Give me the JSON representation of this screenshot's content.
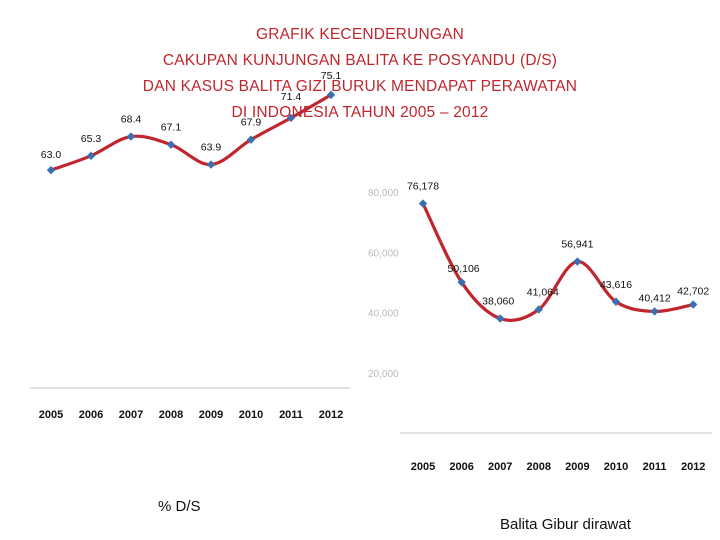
{
  "title": {
    "lines": [
      "GRAFIK KECENDERUNGAN",
      "CAKUPAN KUNJUNGAN BALITA KE POSYANDU (D/S)",
      "DAN KASUS BALITA GIZI BURUK MENDAPAT PERAWATAN",
      "DI INDONESIA TAHUN 2005 – 2012"
    ]
  },
  "colors": {
    "title": "#c0272d",
    "line": "#c0272d",
    "marker": "#3a6fb0",
    "axis": "#cfcfcf"
  },
  "chart_data": [
    {
      "type": "line",
      "caption": "% D/S",
      "categories": [
        "2005",
        "2006",
        "2007",
        "2008",
        "2009",
        "2010",
        "2011",
        "2012"
      ],
      "values": [
        63.0,
        65.3,
        68.4,
        67.1,
        63.9,
        67.9,
        71.4,
        75.1
      ],
      "labels": [
        "63.0",
        "65.3",
        "68.4",
        "67.1",
        "63.9",
        "67.9",
        "71.4",
        "75.1"
      ],
      "ylim": [
        0,
        100
      ],
      "grid": false
    },
    {
      "type": "line",
      "caption": "Balita Gibur dirawat",
      "categories": [
        "2005",
        "2006",
        "2007",
        "2008",
        "2009",
        "2010",
        "2011",
        "2012"
      ],
      "values": [
        76178,
        50106,
        38060,
        41064,
        56941,
        43616,
        40412,
        42702
      ],
      "labels": [
        "76,178",
        "50,106",
        "38,060",
        "41,064",
        "56,941",
        "43,616",
        "40,412",
        "42,702"
      ],
      "ytick_labels": [
        "80,000",
        "60,000",
        "40,000",
        "20,000"
      ],
      "ylim": [
        20000,
        80000
      ],
      "grid": false
    }
  ]
}
